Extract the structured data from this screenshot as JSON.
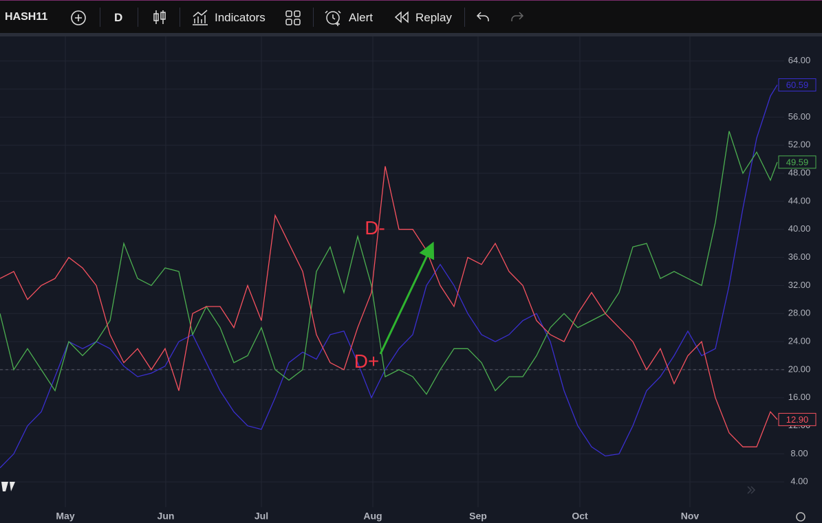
{
  "toolbar": {
    "symbol": "HASH11",
    "interval": "D",
    "indicators": "Indicators",
    "alert": "Alert",
    "replay": "Replay"
  },
  "chart_data": {
    "type": "line",
    "x": [
      0,
      2,
      4,
      6,
      8,
      10,
      12,
      14,
      16,
      18,
      20,
      22,
      24,
      26,
      28,
      30,
      32,
      34,
      36,
      38,
      40,
      42,
      44,
      46,
      48,
      50,
      52,
      54,
      56,
      58,
      60,
      62,
      64,
      66,
      68,
      70,
      72,
      74,
      76,
      78,
      80,
      82,
      84,
      86,
      88,
      90,
      92,
      94,
      96,
      98,
      100,
      102,
      104,
      106,
      108,
      110,
      112,
      113
    ],
    "xlim": [
      0,
      114
    ],
    "xticks": [
      {
        "value": 9.5,
        "label": "May"
      },
      {
        "value": 24.1,
        "label": "Jun"
      },
      {
        "value": 38,
        "label": "Jul"
      },
      {
        "value": 54.2,
        "label": "Aug"
      },
      {
        "value": 69.5,
        "label": "Sep"
      },
      {
        "value": 84.3,
        "label": "Oct"
      },
      {
        "value": 100.3,
        "label": "Nov"
      }
    ],
    "ylim": [
      0.4,
      67.5
    ],
    "yticks": [
      {
        "value": 4,
        "label": "4.00"
      },
      {
        "value": 8,
        "label": "8.00"
      },
      {
        "value": 12,
        "label": "12.00"
      },
      {
        "value": 16,
        "label": "16.00"
      },
      {
        "value": 20,
        "label": "20.00"
      },
      {
        "value": 24,
        "label": "24.00"
      },
      {
        "value": 28,
        "label": "28.00"
      },
      {
        "value": 32,
        "label": "32.00"
      },
      {
        "value": 36,
        "label": "36.00"
      },
      {
        "value": 40,
        "label": "40.00"
      },
      {
        "value": 44,
        "label": "44.00"
      },
      {
        "value": 48,
        "label": "48.00"
      },
      {
        "value": 52,
        "label": "52.00"
      },
      {
        "value": 56,
        "label": "56.00"
      },
      {
        "value": 60,
        "label": "60.00"
      },
      {
        "value": 64,
        "label": "64.00"
      }
    ],
    "grid": true,
    "hline": 20,
    "series": [
      {
        "color": "#3a2fd0",
        "last_value_label": "60.59",
        "values": [
          6,
          8,
          12,
          14,
          19,
          24,
          23,
          24,
          23,
          20.5,
          19,
          19.5,
          20.5,
          24,
          25,
          21,
          17,
          14,
          12,
          11.5,
          16,
          21,
          22.5,
          21.5,
          25,
          25.5,
          21,
          16,
          20,
          23,
          25,
          32,
          35,
          32,
          28,
          25,
          24,
          25,
          27,
          28,
          24,
          17,
          12,
          9,
          7.7,
          8,
          12,
          17,
          19,
          22,
          25.5,
          22,
          23,
          32,
          43,
          53,
          59,
          60.59
        ]
      },
      {
        "color": "#4caf50",
        "last_value_label": "49.59",
        "values": [
          28,
          20,
          23,
          20,
          17,
          24,
          22,
          24,
          27,
          38,
          33,
          32,
          34.5,
          34,
          25,
          29,
          26,
          21,
          22,
          26,
          20,
          18.5,
          20,
          34,
          37.5,
          31,
          39,
          32,
          19,
          20,
          19,
          16.5,
          20,
          23,
          23,
          21,
          17,
          19,
          19,
          22,
          26,
          28,
          26,
          27,
          28,
          31,
          37.5,
          38,
          33,
          34,
          33,
          32,
          41,
          54,
          48,
          51,
          47,
          49.59
        ]
      },
      {
        "color": "#f7525f",
        "last_value_label": "12.90",
        "values": [
          33,
          34,
          30,
          32,
          33,
          36,
          34.5,
          32,
          25,
          21,
          23,
          20,
          23,
          17,
          28,
          29,
          29,
          26,
          32,
          27,
          42,
          38,
          34,
          25,
          21,
          20,
          26,
          31,
          49,
          40,
          40,
          37,
          32,
          29,
          36,
          35,
          38,
          34,
          32,
          27,
          25,
          24,
          28,
          31,
          28,
          26,
          24,
          20,
          23,
          18,
          22,
          24,
          16,
          11,
          9,
          9,
          14,
          12.9
        ]
      }
    ],
    "annotations": [
      {
        "text": "D-",
        "x": 54.5,
        "y": 40,
        "color": "#f23645"
      },
      {
        "text": "D+",
        "x": 53.3,
        "y": 21,
        "color": "#f23645"
      }
    ]
  }
}
